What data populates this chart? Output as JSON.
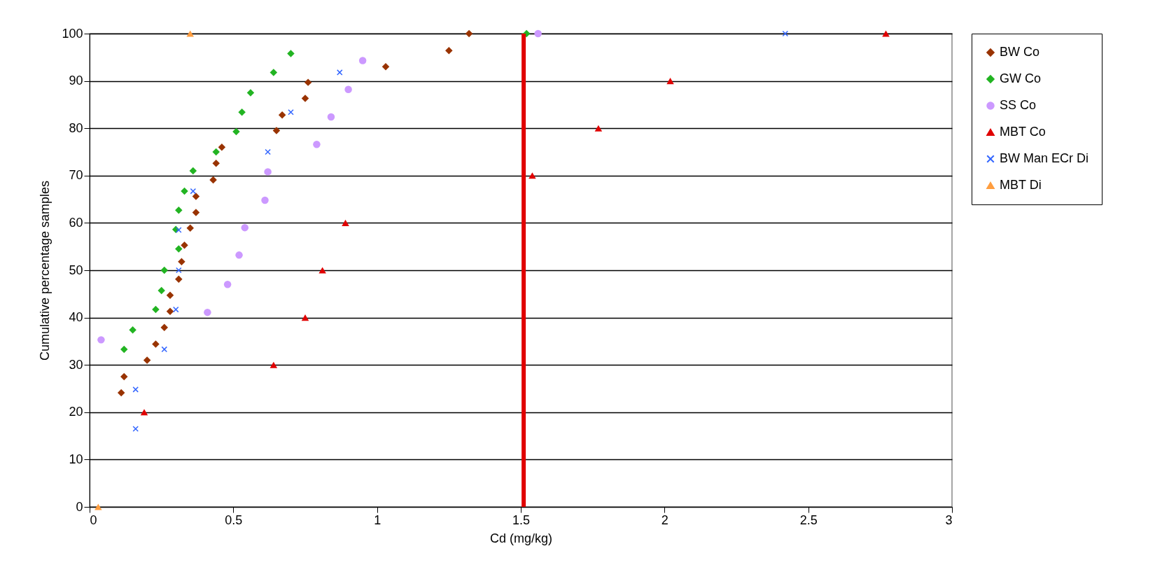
{
  "chart_data": {
    "type": "scatter",
    "xlabel": "Cd (mg/kg)",
    "ylabel": "Cumulative percentage samples",
    "xlim": [
      0,
      3
    ],
    "xticks": [
      0,
      0.5,
      1,
      1.5,
      2,
      2.5,
      3
    ],
    "ylim": [
      0,
      100
    ],
    "yticks": [
      0,
      10,
      20,
      30,
      40,
      50,
      60,
      70,
      80,
      90,
      100
    ],
    "grid": "y",
    "legend": "right",
    "series": [
      {
        "name": "BW Co",
        "color": "#993300",
        "marker": "diamond",
        "x": [
          0.11,
          0.12,
          0.2,
          0.23,
          0.26,
          0.28,
          0.28,
          0.31,
          0.32,
          0.33,
          0.35,
          0.37,
          0.37,
          0.43,
          0.44,
          0.46,
          0.65,
          0.67,
          0.75,
          0.76,
          1.03,
          1.25,
          1.32
        ],
        "values": [
          24.1,
          27.5,
          31.0,
          34.4,
          37.9,
          41.3,
          44.7,
          48.1,
          51.8,
          55.3,
          58.9,
          62.2,
          65.6,
          69.1,
          72.6,
          76.0,
          79.5,
          82.8,
          86.3,
          89.7,
          93.0,
          96.4,
          100
        ]
      },
      {
        "name": "GW Co",
        "color": "#22b422",
        "marker": "diamond",
        "x": [
          0.12,
          0.15,
          0.23,
          0.25,
          0.26,
          0.31,
          0.3,
          0.31,
          0.33,
          0.36,
          0.44,
          0.51,
          0.53,
          0.56,
          0.64,
          0.7,
          1.52
        ],
        "values": [
          33.3,
          37.4,
          41.7,
          45.7,
          50.0,
          54.5,
          58.6,
          62.7,
          66.7,
          71.0,
          75.0,
          79.3,
          83.4,
          87.5,
          91.8,
          95.8,
          100
        ]
      },
      {
        "name": "SS Co",
        "color": "#cc99ff",
        "marker": "circle",
        "x": [
          0.04,
          0.41,
          0.48,
          0.52,
          0.54,
          0.61,
          0.62,
          0.79,
          0.84,
          0.9,
          0.95,
          1.56
        ],
        "values": [
          35.3,
          41.1,
          47.0,
          53.2,
          59.0,
          64.8,
          70.8,
          76.6,
          82.4,
          88.2,
          94.3,
          100
        ]
      },
      {
        "name": "MBT Co",
        "color": "#e00000",
        "marker": "triangle",
        "x": [
          0.19,
          0.64,
          0.75,
          0.81,
          0.89,
          1.54,
          1.77,
          2.02,
          2.77
        ],
        "values": [
          20,
          30,
          40,
          50,
          60,
          70,
          80,
          90,
          100
        ]
      },
      {
        "name": "BW Man ECr Di",
        "color": "#3366ff",
        "marker": "cross",
        "x": [
          0.16,
          0.16,
          0.26,
          0.3,
          0.31,
          0.31,
          0.36,
          0.62,
          0.7,
          0.87,
          2.42
        ],
        "values": [
          16.5,
          24.8,
          33.3,
          41.7,
          50.0,
          58.5,
          66.7,
          75.0,
          83.4,
          91.8,
          100
        ]
      },
      {
        "name": "MBT Di",
        "color": "#ff9e40",
        "marker": "triangle",
        "x": [
          0.03,
          0.35
        ],
        "values": [
          0,
          100
        ]
      }
    ],
    "ref_lines": [
      {
        "axis": "x",
        "value": 1.51,
        "color": "#e00000"
      }
    ]
  }
}
